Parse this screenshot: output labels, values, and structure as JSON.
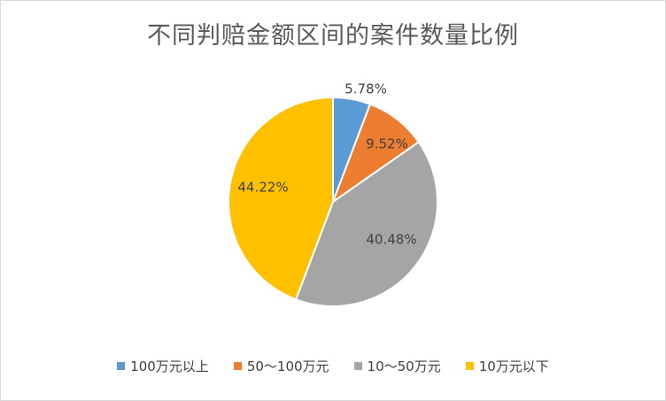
{
  "chart_data": {
    "type": "pie",
    "title": "不同判赔金额区间的案件数量比例",
    "categories": [
      "100万元以上",
      "50～100万元",
      "10～50万元",
      "10万元以下"
    ],
    "values": [
      5.78,
      9.52,
      40.48,
      44.22
    ],
    "labels": [
      "5.78%",
      "9.52%",
      "40.48%",
      "44.22%"
    ],
    "colors": [
      "#5b9bd5",
      "#ed7d31",
      "#a5a5a5",
      "#ffc000"
    ],
    "legend": "bottom",
    "start_angle": "12 o'clock, clockwise"
  }
}
